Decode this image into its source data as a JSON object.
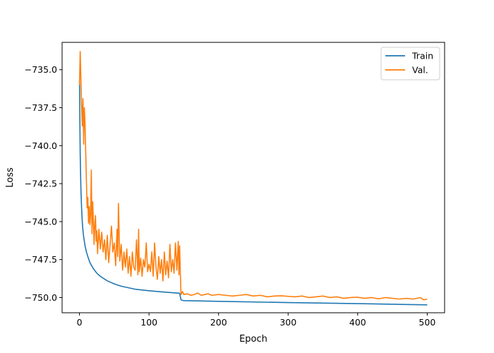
{
  "chart_data": {
    "type": "line",
    "xlabel": "Epoch",
    "ylabel": "Loss",
    "xlim": [
      -25,
      525
    ],
    "ylim": [
      -751.0,
      -733.2
    ],
    "xticks": [
      0,
      100,
      200,
      300,
      400,
      500
    ],
    "yticks": [
      -735.0,
      -737.5,
      -740.0,
      -742.5,
      -745.0,
      -747.5,
      -750.0
    ],
    "xtick_labels": [
      "0",
      "100",
      "200",
      "300",
      "400",
      "500"
    ],
    "ytick_labels": [
      "−735.0",
      "−737.5",
      "−740.0",
      "−742.5",
      "−745.0",
      "−747.5",
      "−750.0"
    ],
    "grid": false,
    "legend_position": "top-right",
    "series": [
      {
        "name": "Train",
        "color": "#1f77b4",
        "x": [
          0,
          1,
          2,
          3,
          4,
          5,
          6,
          8,
          10,
          12,
          15,
          20,
          25,
          30,
          40,
          50,
          60,
          80,
          100,
          120,
          140,
          144,
          146,
          148,
          150,
          200,
          300,
          400,
          500
        ],
        "y": [
          -735.7,
          -740.5,
          -742.8,
          -744.1,
          -745.0,
          -745.6,
          -746.0,
          -746.6,
          -747.0,
          -747.3,
          -747.7,
          -748.1,
          -748.4,
          -748.6,
          -748.9,
          -749.1,
          -749.25,
          -749.45,
          -749.55,
          -749.63,
          -749.7,
          -749.72,
          -750.15,
          -750.18,
          -750.2,
          -750.25,
          -750.33,
          -750.4,
          -750.48
        ]
      },
      {
        "name": "Val.",
        "color": "#ff7f0e",
        "x": [
          0,
          1,
          2,
          3,
          4,
          5,
          6,
          7,
          8,
          9,
          10,
          11,
          12,
          13,
          14,
          15,
          16,
          17,
          18,
          19,
          20,
          21,
          22,
          23,
          24,
          25,
          26,
          28,
          30,
          32,
          34,
          36,
          38,
          40,
          42,
          44,
          46,
          48,
          50,
          52,
          54,
          55,
          56,
          58,
          60,
          62,
          64,
          66,
          68,
          70,
          72,
          74,
          76,
          78,
          80,
          82,
          84,
          85,
          86,
          88,
          90,
          92,
          94,
          96,
          98,
          100,
          102,
          104,
          106,
          108,
          110,
          112,
          114,
          116,
          118,
          120,
          122,
          124,
          126,
          128,
          130,
          132,
          134,
          136,
          138,
          140,
          142,
          143,
          144,
          145,
          146,
          148,
          150,
          155,
          160,
          165,
          170,
          175,
          180,
          185,
          190,
          200,
          210,
          220,
          230,
          240,
          250,
          260,
          270,
          280,
          290,
          300,
          310,
          320,
          330,
          340,
          350,
          360,
          370,
          380,
          390,
          400,
          410,
          420,
          430,
          440,
          450,
          460,
          470,
          480,
          490,
          495,
          500
        ],
        "y": [
          -736.0,
          -733.8,
          -735.6,
          -737.3,
          -738.7,
          -736.9,
          -739.9,
          -737.5,
          -738.6,
          -740.5,
          -742.4,
          -744.1,
          -743.4,
          -745.1,
          -744.0,
          -745.2,
          -744.5,
          -741.6,
          -745.8,
          -743.7,
          -745.0,
          -746.5,
          -745.2,
          -744.6,
          -746.3,
          -745.6,
          -747.1,
          -745.5,
          -746.8,
          -745.7,
          -747.0,
          -746.2,
          -747.5,
          -745.9,
          -747.7,
          -746.5,
          -745.3,
          -747.0,
          -746.4,
          -747.9,
          -745.5,
          -747.3,
          -743.8,
          -747.6,
          -746.5,
          -748.2,
          -747.0,
          -748.0,
          -746.8,
          -748.4,
          -747.3,
          -748.6,
          -747.0,
          -748.0,
          -748.2,
          -746.2,
          -748.5,
          -745.5,
          -748.3,
          -747.4,
          -748.6,
          -747.5,
          -748.0,
          -746.4,
          -748.3,
          -747.8,
          -748.3,
          -747.0,
          -748.6,
          -746.4,
          -748.0,
          -748.8,
          -747.3,
          -748.4,
          -747.5,
          -748.9,
          -747.0,
          -748.5,
          -747.6,
          -748.7,
          -746.5,
          -748.3,
          -747.5,
          -748.4,
          -746.4,
          -748.2,
          -746.3,
          -748.5,
          -746.6,
          -748.4,
          -749.8,
          -749.6,
          -749.8,
          -749.75,
          -749.85,
          -749.8,
          -749.7,
          -749.85,
          -749.8,
          -749.75,
          -749.85,
          -749.8,
          -749.85,
          -749.9,
          -749.85,
          -749.8,
          -749.9,
          -749.85,
          -749.95,
          -749.9,
          -749.88,
          -749.92,
          -749.95,
          -749.9,
          -750.0,
          -749.95,
          -749.9,
          -750.0,
          -749.95,
          -750.05,
          -750.0,
          -749.98,
          -750.05,
          -750.0,
          -750.08,
          -750.0,
          -750.05,
          -750.1,
          -750.05,
          -750.1,
          -750.0,
          -750.15,
          -750.1
        ]
      }
    ]
  }
}
